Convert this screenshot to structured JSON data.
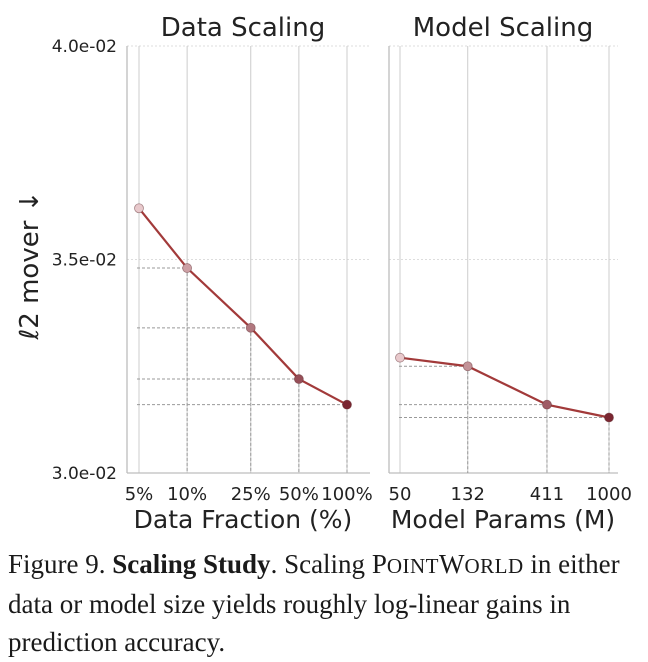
{
  "chart_data": [
    {
      "type": "line",
      "title": "Data Scaling",
      "xlabel": "Data Fraction (%)",
      "ylabel": "ℓ2 mover ↓",
      "categories": [
        "5%",
        "10%",
        "25%",
        "50%",
        "100%"
      ],
      "x": [
        5,
        10,
        25,
        50,
        100
      ],
      "x_scale": "log",
      "series": [
        {
          "values": [
            0.0362,
            0.0348,
            0.0334,
            0.0322,
            0.0316
          ]
        }
      ],
      "ylim": [
        0.03,
        0.04
      ],
      "yticks": [
        "3.0e-02",
        "3.5e-02",
        "4.0e-02"
      ],
      "ytick_values": [
        0.03,
        0.035,
        0.04
      ],
      "grid": true
    },
    {
      "type": "line",
      "title": "Model Scaling",
      "xlabel": "Model Params (M)",
      "categories": [
        "50",
        "132",
        "411",
        "1000"
      ],
      "x": [
        50,
        132,
        411,
        1000
      ],
      "x_scale": "log",
      "series": [
        {
          "values": [
            0.0327,
            0.0325,
            0.0316,
            0.0313
          ]
        }
      ],
      "ylim": [
        0.03,
        0.04
      ],
      "grid": true
    }
  ],
  "colors": {
    "line": "#a23a3a",
    "marker_light": "#e8c9cc",
    "marker_dark": "#7a2631",
    "grid": "#cccccc",
    "guide": "#999999"
  },
  "caption": {
    "figure_label": "Figure 9.",
    "bold_title": "Scaling Study",
    "text_before": ". Scaling ",
    "name_P": "P",
    "name_oint": "OINT",
    "name_W": "W",
    "name_orld": "ORLD",
    "text_after": " in either data or model size yields roughly log-linear gains in prediction accuracy."
  }
}
